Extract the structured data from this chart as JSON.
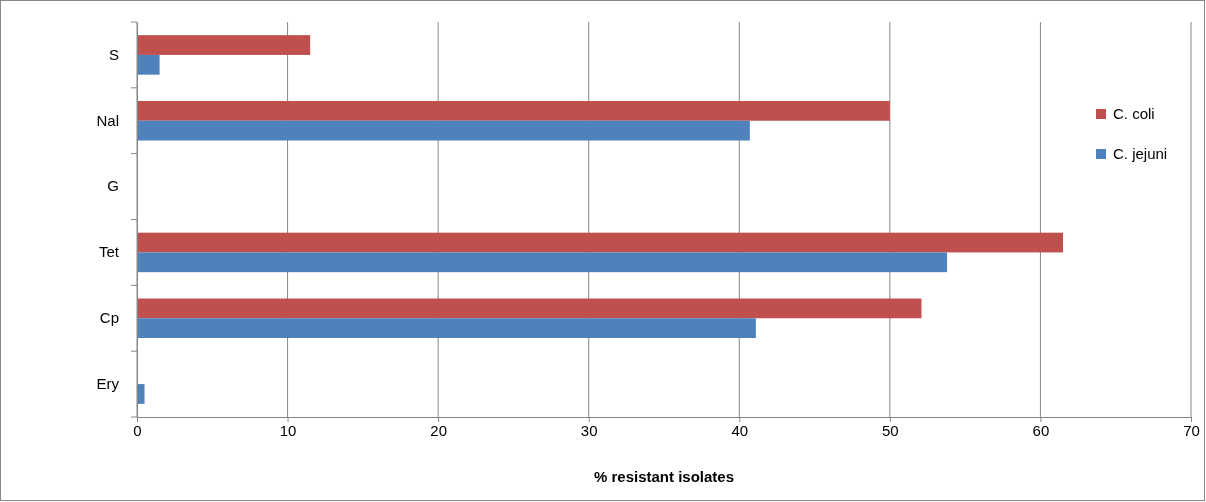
{
  "chart_data": {
    "type": "bar",
    "orientation": "horizontal",
    "xlabel": "% resistant isolates",
    "categories": [
      "S",
      "Nal",
      "G",
      "Tet",
      "Cp",
      "Ery"
    ],
    "series": [
      {
        "name": "C. coli",
        "color": "#c0504d",
        "values": [
          11.5,
          50,
          0,
          61.5,
          52.1,
          0
        ]
      },
      {
        "name": "C. jejuni",
        "color": "#4f81bd",
        "values": [
          1.5,
          40.7,
          0,
          53.8,
          41.1,
          0.5
        ]
      }
    ],
    "xlim": [
      0,
      70
    ],
    "xticks": [
      0,
      10,
      20,
      30,
      40,
      50,
      60,
      70
    ],
    "grid": "x",
    "legend": "right"
  }
}
